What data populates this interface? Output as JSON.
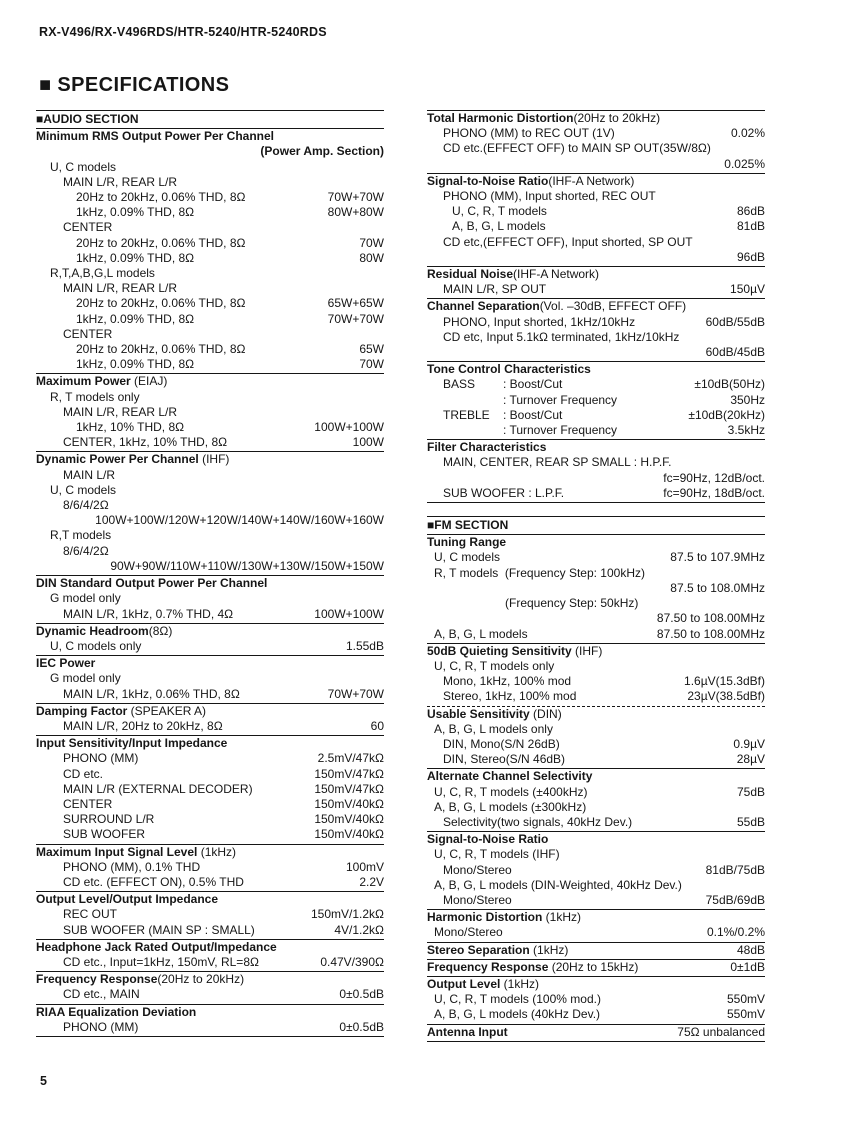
{
  "page": {
    "model_header": "RX-V496/RX-V496RDS/HTR-5240/HTR-5240RDS",
    "title": "■ SPECIFICATIONS",
    "page_number": "5"
  },
  "columns": {
    "left": [
      {
        "type": "banner",
        "label": "■AUDIO SECTION"
      },
      {
        "type": "section",
        "header": {
          "bold": "Minimum RMS Output Power Per Channel"
        },
        "subheader": "(Power Amp. Section)",
        "rows": [
          {
            "label": "U, C models",
            "indent": 1
          },
          {
            "label": "MAIN L/R, REAR L/R",
            "indent": 2
          },
          {
            "label": "20Hz to 20kHz, 0.06% THD, 8Ω",
            "value": "70W+70W",
            "indent": 3
          },
          {
            "label": "1kHz, 0.09% THD, 8Ω",
            "value": "80W+80W",
            "indent": 3
          },
          {
            "label": "CENTER",
            "indent": 2
          },
          {
            "label": "20Hz to 20kHz, 0.06% THD, 8Ω",
            "value": "70W",
            "indent": 3
          },
          {
            "label": "1kHz, 0.09% THD, 8Ω",
            "value": "80W",
            "indent": 3
          },
          {
            "label": "R,T,A,B,G,L models",
            "indent": 1
          },
          {
            "label": "MAIN L/R, REAR L/R",
            "indent": 2
          },
          {
            "label": "20Hz to 20kHz, 0.06% THD, 8Ω",
            "value": "65W+65W",
            "indent": 3
          },
          {
            "label": "1kHz, 0.09% THD, 8Ω",
            "value": "70W+70W",
            "indent": 3
          },
          {
            "label": "CENTER",
            "indent": 2
          },
          {
            "label": "20Hz to 20kHz, 0.06% THD, 8Ω",
            "value": "65W",
            "indent": 3
          },
          {
            "label": "1kHz, 0.09% THD, 8Ω",
            "value": "70W",
            "indent": 3
          }
        ]
      },
      {
        "type": "section",
        "header": {
          "bold": "Maximum Power",
          "normal": " (EIAJ)"
        },
        "rows": [
          {
            "label": "R, T models only",
            "indent": 1
          },
          {
            "label": "MAIN L/R, REAR L/R",
            "indent": 2
          },
          {
            "label": "1kHz, 10% THD, 8Ω",
            "value": "100W+100W",
            "indent": 3
          },
          {
            "label": "CENTER, 1kHz, 10% THD, 8Ω",
            "value": "100W",
            "indent": 2
          }
        ]
      },
      {
        "type": "section",
        "header": {
          "bold": "Dynamic Power Per Channel",
          "normal": " (IHF)"
        },
        "rows": [
          {
            "label": "MAIN L/R",
            "indent": 2
          },
          {
            "label": "U, C models",
            "indent": 1
          },
          {
            "label": "8/6/4/2Ω",
            "indent": 2
          },
          {
            "value": "100W+100W/120W+120W/140W+140W/160W+160W"
          },
          {
            "label": "R,T models",
            "indent": 1
          },
          {
            "label": "8/6/4/2Ω",
            "indent": 2
          },
          {
            "value": "90W+90W/110W+110W/130W+130W/150W+150W"
          }
        ]
      },
      {
        "type": "section",
        "header": {
          "bold": "DIN Standard Output Power Per Channel"
        },
        "rows": [
          {
            "label": "G model only",
            "indent": 1
          },
          {
            "label": "MAIN L/R, 1kHz, 0.7% THD, 4Ω",
            "value": "100W+100W",
            "indent": 2
          }
        ]
      },
      {
        "type": "section",
        "header": {
          "bold": "Dynamic Headroom",
          "normal": "(8Ω)"
        },
        "rows": [
          {
            "label": "U, C models only",
            "value": "1.55dB",
            "indent": 1
          }
        ]
      },
      {
        "type": "section",
        "header": {
          "bold": "IEC Power"
        },
        "rows": [
          {
            "label": "G model only",
            "indent": 1
          },
          {
            "label": "MAIN L/R, 1kHz, 0.06% THD, 8Ω",
            "value": "70W+70W",
            "indent": 2
          }
        ]
      },
      {
        "type": "section",
        "header": {
          "bold": "Damping Factor",
          "normal": " (SPEAKER A)"
        },
        "rows": [
          {
            "label": "MAIN L/R, 20Hz to 20kHz, 8Ω",
            "value": "60",
            "indent": 2
          }
        ]
      },
      {
        "type": "section",
        "header": {
          "bold": "Input Sensitivity/Input Impedance"
        },
        "rows": [
          {
            "label": "PHONO (MM)",
            "value": "2.5mV/47kΩ",
            "indent": 2
          },
          {
            "label": "CD etc.",
            "value": "150mV/47kΩ",
            "indent": 2
          },
          {
            "label": "MAIN L/R (EXTERNAL DECODER)",
            "value": "150mV/47kΩ",
            "indent": 2
          },
          {
            "label": "CENTER",
            "value": "150mV/40kΩ",
            "indent": 2
          },
          {
            "label": "SURROUND L/R",
            "value": "150mV/40kΩ",
            "indent": 2
          },
          {
            "label": "SUB WOOFER",
            "value": "150mV/40kΩ",
            "indent": 2
          }
        ]
      },
      {
        "type": "section",
        "header": {
          "bold": "Maximum Input Signal Level",
          "normal": " (1kHz)"
        },
        "rows": [
          {
            "label": "PHONO (MM), 0.1% THD",
            "value": "100mV",
            "indent": 2
          },
          {
            "label": "CD etc. (EFFECT ON), 0.5% THD",
            "value": "2.2V",
            "indent": 2
          }
        ]
      },
      {
        "type": "section",
        "header": {
          "bold": "Output Level/Output Impedance"
        },
        "rows": [
          {
            "label": "REC OUT",
            "value": "150mV/1.2kΩ",
            "indent": 2
          },
          {
            "label": "SUB WOOFER (MAIN SP : SMALL)",
            "value": "4V/1.2kΩ",
            "indent": 2
          }
        ]
      },
      {
        "type": "section",
        "header": {
          "bold": "Headphone Jack Rated Output/Impedance"
        },
        "rows": [
          {
            "label": "CD etc., Input=1kHz, 150mV, RL=8Ω",
            "value": "0.47V/390Ω",
            "indent": 2
          }
        ]
      },
      {
        "type": "section",
        "header": {
          "bold": "Frequency Response",
          "normal": "(20Hz to 20kHz)"
        },
        "rows": [
          {
            "label": "CD etc., MAIN",
            "value": "0±0.5dB",
            "indent": 2
          }
        ]
      },
      {
        "type": "section",
        "header": {
          "bold": "RIAA Equalization Deviation"
        },
        "rows": [
          {
            "label": "PHONO (MM)",
            "value": "0±0.5dB",
            "indent": 2
          }
        ]
      }
    ],
    "right": [
      {
        "type": "section",
        "header": {
          "bold": "Total Harmonic Distortion",
          "normal": "(20Hz to 20kHz)"
        },
        "rows": [
          {
            "label": "PHONO (MM) to REC OUT (1V)",
            "value": "0.02%",
            "indent": 2
          },
          {
            "label": "CD etc.(EFFECT OFF) to MAIN SP OUT(35W/8Ω)",
            "indent": 2
          },
          {
            "value": "0.025%"
          }
        ]
      },
      {
        "type": "section",
        "header": {
          "bold": "Signal-to-Noise Ratio",
          "normal": "(IHF-A Network)"
        },
        "rows": [
          {
            "label": "PHONO (MM), Input shorted, REC OUT",
            "indent": 2
          },
          {
            "label": "U, C, R, T models",
            "value": "86dB",
            "indent": 3
          },
          {
            "label": "A, B, G, L models",
            "value": "81dB",
            "indent": 3
          },
          {
            "label": "CD etc,(EFFECT OFF), Input shorted, SP OUT",
            "indent": 2
          },
          {
            "value": "96dB"
          }
        ]
      },
      {
        "type": "section",
        "header": {
          "bold": "Residual Noise",
          "normal": "(IHF-A Network)"
        },
        "rows": [
          {
            "label": "MAIN L/R, SP OUT",
            "value": "150µV",
            "indent": 2
          }
        ]
      },
      {
        "type": "section",
        "header": {
          "bold": "Channel Separation",
          "normal": "(Vol. –30dB, EFFECT OFF)"
        },
        "rows": [
          {
            "label": "PHONO, Input shorted, 1kHz/10kHz",
            "value": "60dB/55dB",
            "indent": 2
          },
          {
            "label": "CD etc, Input 5.1kΩ terminated, 1kHz/10kHz",
            "indent": 2
          },
          {
            "value": "60dB/45dB"
          }
        ]
      },
      {
        "type": "section",
        "header": {
          "bold": "Tone Control Characteristics"
        },
        "rows": [
          {
            "label": "BASS",
            "label2": ": Boost/Cut",
            "value": "±10dB(50Hz)",
            "indent": 2
          },
          {
            "label": "",
            "label2": ": Turnover Frequency",
            "value": "350Hz",
            "indent": 2
          },
          {
            "label": "TREBLE",
            "label2": ": Boost/Cut",
            "value": "±10dB(20kHz)",
            "indent": 2
          },
          {
            "label": "",
            "label2": ": Turnover Frequency",
            "value": "3.5kHz",
            "indent": 2
          }
        ]
      },
      {
        "type": "section",
        "header": {
          "bold": "Filter Characteristics"
        },
        "rows": [
          {
            "label": "MAIN, CENTER, REAR SP SMALL : H.P.F.",
            "indent": 2
          },
          {
            "value": "fc=90Hz, 12dB/oct."
          },
          {
            "label": "SUB WOOFER : L.P.F.",
            "value": "fc=90Hz, 18dB/oct.",
            "indent": 2
          }
        ]
      },
      {
        "type": "gap"
      },
      {
        "type": "banner",
        "label": "■FM SECTION"
      },
      {
        "type": "section",
        "header": {
          "bold": "Tuning Range"
        },
        "rows": [
          {
            "label": "U, C models",
            "value": "87.5 to 107.9MHz",
            "indent": 1
          },
          {
            "label": "R, T models  (Frequency Step: 100kHz)",
            "indent": 1
          },
          {
            "value": "87.5 to 108.0MHz"
          },
          {
            "label": "(Frequency Step: 50kHz)",
            "indent": "m"
          },
          {
            "value": "87.50 to 108.00MHz"
          },
          {
            "label": "A, B, G, L models",
            "value": "87.50 to 108.00MHz",
            "indent": 1
          }
        ]
      },
      {
        "type": "section",
        "rule": "dashed",
        "header": {
          "bold": "50dB Quieting Sensitivity",
          "normal": " (IHF)"
        },
        "rows": [
          {
            "label": "U, C, R, T models only",
            "indent": 1
          },
          {
            "label": "Mono, 1kHz, 100% mod",
            "value": "1.6µV(15.3dBf)",
            "indent": 2
          },
          {
            "label": "Stereo, 1kHz, 100% mod",
            "value": "23µV(38.5dBf)",
            "indent": 2
          }
        ]
      },
      {
        "type": "section",
        "header": {
          "bold": "Usable Sensitivity",
          "normal": " (DIN)"
        },
        "rows": [
          {
            "label": "A, B, G, L models only",
            "indent": 1
          },
          {
            "label": "DIN, Mono(S/N 26dB)",
            "value": "0.9µV",
            "indent": 2
          },
          {
            "label": "DIN, Stereo(S/N 46dB)",
            "value": "28µV",
            "indent": 2
          }
        ]
      },
      {
        "type": "section",
        "header": {
          "bold": "Alternate Channel Selectivity"
        },
        "rows": [
          {
            "label": "U, C, R, T models (±400kHz)",
            "value": "75dB",
            "indent": 1
          },
          {
            "label": "A, B, G, L models (±300kHz)",
            "indent": 1
          },
          {
            "label": "Selectivity(two signals, 40kHz Dev.)",
            "value": "55dB",
            "indent": 2
          }
        ]
      },
      {
        "type": "section",
        "header": {
          "bold": "Signal-to-Noise Ratio"
        },
        "rows": [
          {
            "label": "U, C, R, T models (IHF)",
            "indent": 1
          },
          {
            "label": "Mono/Stereo",
            "value": "81dB/75dB",
            "indent": 2
          },
          {
            "label": "A, B, G, L models (DIN-Weighted, 40kHz Dev.)",
            "indent": 1
          },
          {
            "label": "Mono/Stereo",
            "value": "75dB/69dB",
            "indent": 2
          }
        ]
      },
      {
        "type": "section",
        "header": {
          "bold": "Harmonic Distortion",
          "normal": " (1kHz)"
        },
        "rows": [
          {
            "label": "Mono/Stereo",
            "value": "0.1%/0.2%",
            "indent": 1
          }
        ]
      },
      {
        "type": "section",
        "header": {
          "bold": "Stereo Separation",
          "normal": " (1kHz)",
          "value": "48dB"
        },
        "rows": []
      },
      {
        "type": "section",
        "header": {
          "bold": "Frequency Response",
          "normal": " (20Hz to 15kHz)",
          "value": "0±1dB"
        },
        "rows": []
      },
      {
        "type": "section",
        "header": {
          "bold": "Output Level",
          "normal": " (1kHz)"
        },
        "rows": [
          {
            "label": "U, C, R, T models (100% mod.)",
            "value": "550mV",
            "indent": 1
          },
          {
            "label": "A, B, G, L models (40kHz Dev.)",
            "value": "550mV",
            "indent": 1
          }
        ]
      },
      {
        "type": "section",
        "header": {
          "bold": "Antenna Input",
          "value": "75Ω unbalanced"
        },
        "rows": []
      }
    ]
  }
}
